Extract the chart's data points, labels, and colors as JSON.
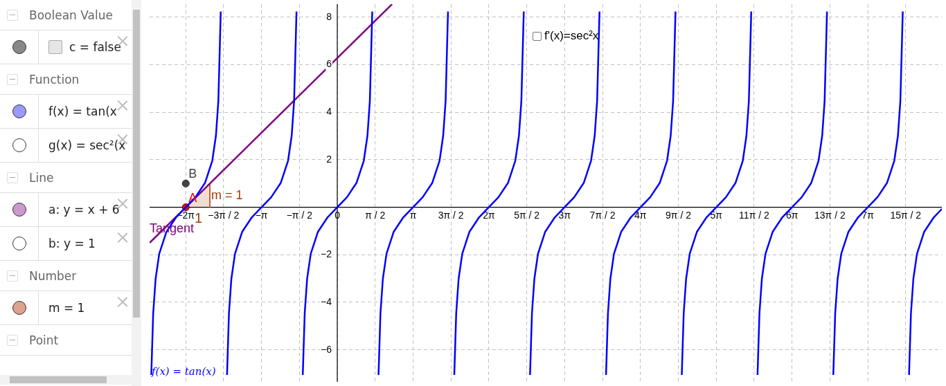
{
  "chart_data": {
    "type": "line",
    "grid": true,
    "legend": false,
    "xlim": [
      -7.78,
      25.06
    ],
    "ylim": [
      -7.35,
      8.55
    ],
    "xticks": [
      {
        "value": -6.2832,
        "label": "−2π"
      },
      {
        "value": -4.7124,
        "label": "−3π / 2"
      },
      {
        "value": -3.1416,
        "label": "−π"
      },
      {
        "value": -1.5708,
        "label": "−π / 2"
      },
      {
        "value": 0,
        "label": "0"
      },
      {
        "value": 1.5708,
        "label": "π / 2"
      },
      {
        "value": 3.1416,
        "label": "π"
      },
      {
        "value": 4.7124,
        "label": "3π / 2"
      },
      {
        "value": 6.2832,
        "label": "2π"
      },
      {
        "value": 7.854,
        "label": "5π / 2"
      },
      {
        "value": 9.4248,
        "label": "3π"
      },
      {
        "value": 10.9956,
        "label": "7π / 2"
      },
      {
        "value": 12.5664,
        "label": "4π"
      },
      {
        "value": 14.1372,
        "label": "9π / 2"
      },
      {
        "value": 15.708,
        "label": "5π"
      },
      {
        "value": 17.2788,
        "label": "11π / 2"
      },
      {
        "value": 18.8496,
        "label": "6π"
      },
      {
        "value": 20.4204,
        "label": "13π / 2"
      },
      {
        "value": 21.9911,
        "label": "7π"
      },
      {
        "value": 23.5619,
        "label": "15π / 2"
      }
    ],
    "yticks": [
      {
        "value": -6,
        "label": "−6"
      },
      {
        "value": -4,
        "label": "−4"
      },
      {
        "value": -2,
        "label": "−2"
      },
      2,
      4,
      6,
      8
    ],
    "series": [
      {
        "type": "line",
        "color": "#0000ff",
        "marker": "none",
        "x": [
          -7.71,
          -7.63,
          -7.53,
          -7.38,
          -7.08,
          -6.68,
          -6.28,
          -5.88,
          -5.48,
          -5.18,
          -5.03,
          -4.93,
          -4.83,
          -4.71,
          -4.57,
          -4.49,
          -4.39,
          -4.24,
          -3.94,
          -3.54,
          -3.14,
          -2.74,
          -2.34,
          -2.04,
          -1.89,
          -1.79,
          -1.69,
          -1.57,
          -1.43,
          -1.35,
          -1.25,
          -1.1,
          -0.8,
          -0.4,
          0,
          0.4,
          0.8,
          1.1,
          1.25,
          1.35,
          1.45,
          1.57,
          1.71,
          1.79,
          1.89,
          2.04,
          2.34,
          2.74,
          3.14,
          3.54,
          3.94,
          4.24,
          4.39,
          4.49,
          4.59,
          4.71,
          4.85,
          4.93,
          5.03,
          5.18,
          5.48,
          5.88,
          6.28,
          6.68,
          7.08,
          7.38,
          7.53,
          7.63,
          7.73,
          7.85,
          7.99,
          8.07,
          8.17,
          8.32,
          8.62,
          9.02,
          9.42,
          9.82,
          10.22,
          10.52,
          10.67,
          10.77,
          10.87,
          11.0,
          11.14,
          11.22,
          11.32,
          11.47,
          11.77,
          12.17,
          12.57,
          12.97,
          13.37,
          13.67,
          13.82,
          13.92,
          14.02,
          14.14,
          14.28,
          14.36,
          14.46,
          14.61,
          14.91,
          15.31,
          15.71,
          16.11,
          16.51,
          16.81,
          16.96,
          17.06,
          17.16,
          17.28,
          17.42,
          17.5,
          17.6,
          17.75,
          18.05,
          18.45,
          18.85,
          19.25,
          19.65,
          19.95,
          20.1,
          20.2,
          20.3,
          20.42,
          20.56,
          20.64,
          20.74,
          20.89,
          21.19,
          21.59,
          21.99,
          22.39,
          22.79,
          23.09,
          23.24,
          23.34,
          23.44,
          23.56,
          23.7,
          23.78,
          23.88,
          24.03,
          24.33,
          24.73,
          25.06
        ],
        "values": [
          -7.06,
          -4.46,
          -3.01,
          -1.96,
          -1.03,
          -0.42,
          0,
          0.42,
          1.03,
          1.96,
          3.01,
          4.46,
          8.24,
          null,
          -7.06,
          -4.46,
          -3.01,
          -1.96,
          -1.03,
          -0.42,
          0,
          0.42,
          1.03,
          1.96,
          3.01,
          4.46,
          8.24,
          null,
          -7.06,
          -4.46,
          -3.01,
          -1.96,
          -1.03,
          -0.42,
          0,
          0.42,
          1.03,
          1.96,
          3.01,
          4.46,
          8.24,
          null,
          -7.06,
          -4.46,
          -3.01,
          -1.96,
          -1.03,
          -0.42,
          0,
          0.42,
          1.03,
          1.96,
          3.01,
          4.46,
          8.24,
          null,
          -7.06,
          -4.46,
          -3.01,
          -1.96,
          -1.03,
          -0.42,
          0,
          0.42,
          1.03,
          1.96,
          3.01,
          4.46,
          8.24,
          null,
          -7.06,
          -4.46,
          -3.01,
          -1.96,
          -1.03,
          -0.42,
          0,
          0.42,
          1.03,
          1.96,
          3.01,
          4.46,
          8.24,
          null,
          -7.06,
          -4.46,
          -3.01,
          -1.96,
          -1.03,
          -0.42,
          0,
          0.42,
          1.03,
          1.96,
          3.01,
          4.46,
          8.24,
          null,
          -7.06,
          -4.46,
          -3.01,
          -1.96,
          -1.03,
          -0.42,
          0,
          0.42,
          1.03,
          1.96,
          3.01,
          4.46,
          8.24,
          null,
          -7.06,
          -4.46,
          -3.01,
          -1.96,
          -1.03,
          -0.42,
          0,
          0.42,
          1.03,
          1.96,
          3.01,
          4.46,
          8.24,
          null,
          -7.06,
          -4.46,
          -3.01,
          -1.96,
          -1.03,
          -0.42,
          0,
          0.42,
          1.03,
          1.96,
          3.01,
          4.46,
          8.24,
          null,
          -7.06,
          -4.46,
          -3.01,
          -1.96,
          -1.03,
          -0.42,
          -0.07
        ]
      },
      {
        "type": "line",
        "color": "#800080",
        "marker": "none",
        "x": [
          -7.78,
          2.27
        ],
        "values": [
          -1.5,
          8.55
        ]
      },
      {
        "type": "area",
        "color": "#b5541f",
        "marker": "none",
        "x": [
          -6.28,
          -5.28,
          -5.28
        ],
        "values": [
          0,
          1,
          0
        ]
      },
      {
        "type": "scatter",
        "name": "A",
        "color": "#ff0000",
        "marker": "circle",
        "x": [
          -6.28
        ],
        "values": [
          0
        ]
      },
      {
        "type": "scatter",
        "name": "B",
        "color": "#444444",
        "marker": "circle",
        "x": [
          -6.28
        ],
        "values": [
          1
        ]
      }
    ],
    "annotations": [
      "Boolean Value",
      "c = false",
      "Function",
      "f(x) = tan(x",
      "g(x) = sec²(x",
      "Line",
      "a: y = x + 6",
      "b: y = 1",
      "Number",
      "m = 1",
      "Point",
      "f'(x)=sec²x",
      "Tangent",
      "m = 1",
      "1",
      "f(x) = tan(x)"
    ]
  }
}
